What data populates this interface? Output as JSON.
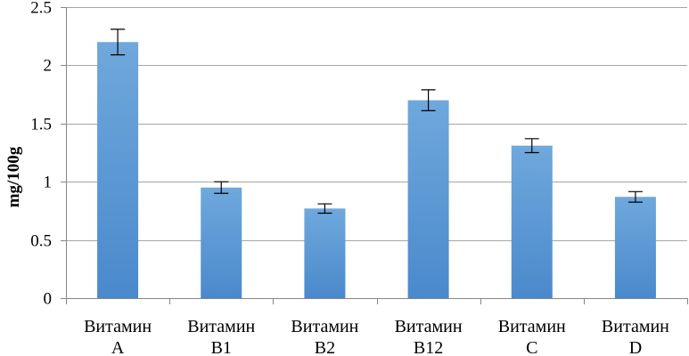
{
  "chart_data": {
    "type": "bar",
    "title": "",
    "xlabel": "",
    "ylabel": "mg/100g",
    "ylim": [
      0,
      2.5
    ],
    "yticks": [
      "0",
      "0.5",
      "1",
      "1.5",
      "2",
      "2.5"
    ],
    "grid": true,
    "legend": "none",
    "bar_color": "#5b9bd5",
    "categories": [
      [
        "Витамин",
        "A"
      ],
      [
        "Витамин",
        "B1"
      ],
      [
        "Витамин",
        "B2"
      ],
      [
        "Витамин",
        "B12"
      ],
      [
        "Витамин",
        "C"
      ],
      [
        "Витамин",
        "D"
      ]
    ],
    "values": [
      2.2,
      0.95,
      0.77,
      1.7,
      1.31,
      0.87
    ],
    "errors": [
      0.11,
      0.05,
      0.04,
      0.09,
      0.06,
      0.045
    ]
  }
}
